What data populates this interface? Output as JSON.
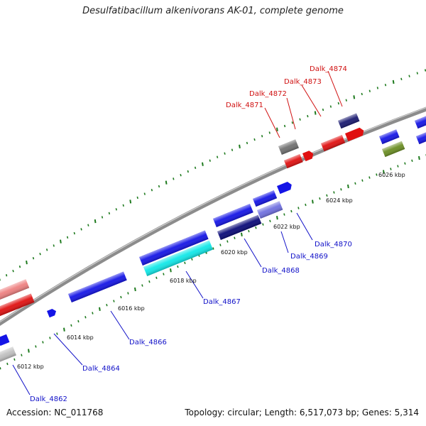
{
  "title": "Desulfatibacillum alkenivorans AK-01, complete genome",
  "footer": {
    "accession": "Accession: NC_011768",
    "summary": "Topology: circular; Length: 6,517,073 bp; Genes: 5,314"
  },
  "colors": {
    "backbone": "#8c8c8c",
    "tick": "#1e7a1e",
    "label_red": "#d01010",
    "label_blue": "#1010c8"
  },
  "kbp_labels": [
    {
      "name": "kbp-6012",
      "text": "6012 kbp"
    },
    {
      "name": "kbp-6014",
      "text": "6014 kbp"
    },
    {
      "name": "kbp-6016",
      "text": "6016 kbp"
    },
    {
      "name": "kbp-6018",
      "text": "6018 kbp"
    },
    {
      "name": "kbp-6020",
      "text": "6020 kbp"
    },
    {
      "name": "kbp-6022",
      "text": "6022 kbp"
    },
    {
      "name": "kbp-6024",
      "text": "6024 kbp"
    },
    {
      "name": "kbp-6026",
      "text": "6026 kbp"
    }
  ],
  "gene_labels": [
    {
      "name": "gene-label-dalk-4871",
      "text": "Dalk_4871",
      "color": "#d01010"
    },
    {
      "name": "gene-label-dalk-4872",
      "text": "Dalk_4872",
      "color": "#d01010"
    },
    {
      "name": "gene-label-dalk-4873",
      "text": "Dalk_4873",
      "color": "#d01010"
    },
    {
      "name": "gene-label-dalk-4874",
      "text": "Dalk_4874",
      "color": "#d01010"
    },
    {
      "name": "gene-label-dalk-4870",
      "text": "Dalk_4870",
      "color": "#1010c8"
    },
    {
      "name": "gene-label-dalk-4869",
      "text": "Dalk_4869",
      "color": "#1010c8"
    },
    {
      "name": "gene-label-dalk-4868",
      "text": "Dalk_4868",
      "color": "#1010c8"
    },
    {
      "name": "gene-label-dalk-4867",
      "text": "Dalk_4867",
      "color": "#1010c8"
    },
    {
      "name": "gene-label-dalk-4866",
      "text": "Dalk_4866",
      "color": "#1010c8"
    },
    {
      "name": "gene-label-dalk-4864",
      "text": "Dalk_4864",
      "color": "#1010c8"
    },
    {
      "name": "gene-label-dalk-4862",
      "text": "Dalk_4862",
      "color": "#1010c8"
    }
  ]
}
